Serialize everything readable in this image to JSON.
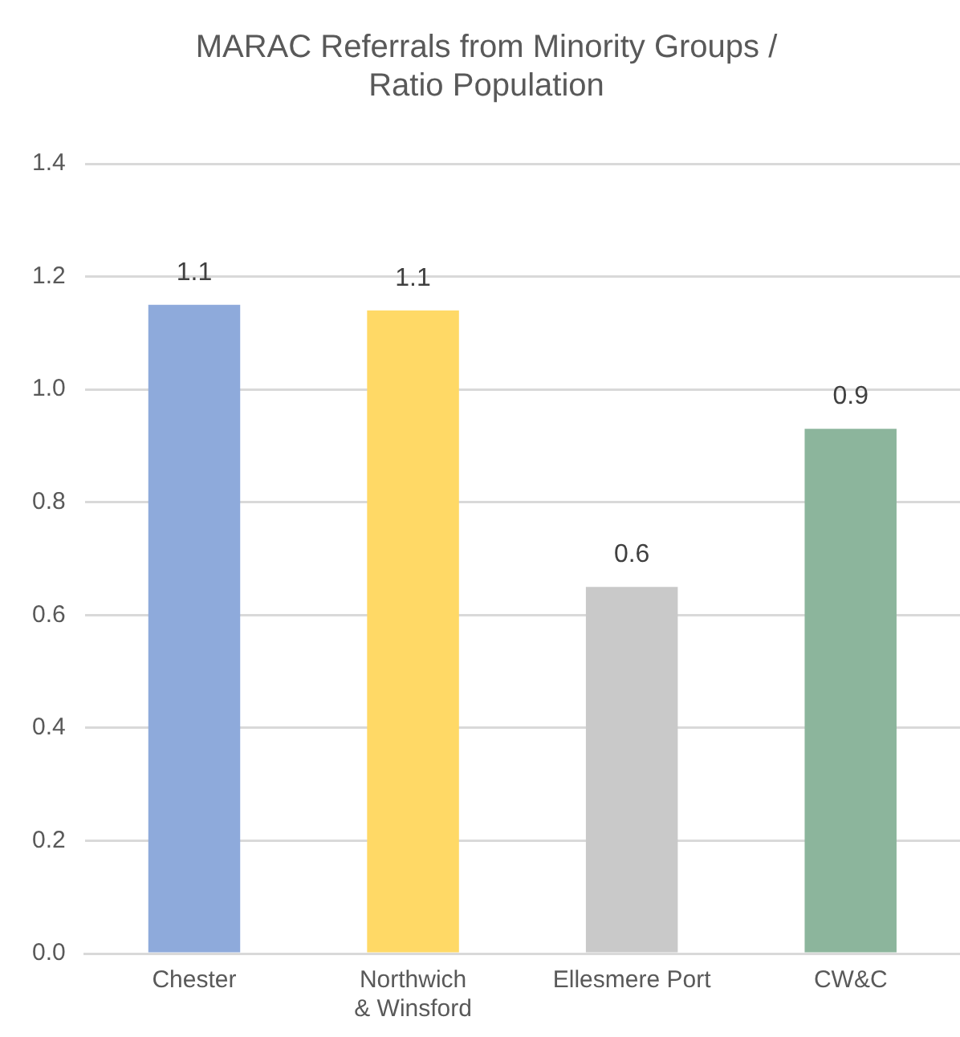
{
  "chart_data": {
    "type": "bar",
    "title": "MARAC Referrals from Minority Groups / Ratio Population",
    "categories": [
      "Chester",
      "Northwich & Winsford",
      "Ellesmere Port",
      "CW&C"
    ],
    "values": [
      1.15,
      1.14,
      0.65,
      0.93
    ],
    "colors": [
      "#8eaadb",
      "#ffd966",
      "#c9c9c9",
      "#8cb59c"
    ],
    "value_labels": [
      "1.1",
      "1.1",
      "0.6",
      "0.9"
    ],
    "ylim": [
      0,
      1.4
    ],
    "yticks": [
      {
        "value": 0,
        "label": "0.0"
      },
      {
        "value": 0.2,
        "label": "0.2"
      },
      {
        "value": 0.4,
        "label": "0.4"
      },
      {
        "value": 0.6,
        "label": "0.6"
      },
      {
        "value": 0.8,
        "label": "0.8"
      },
      {
        "value": 1,
        "label": "1.0"
      },
      {
        "value": 1.2,
        "label": "1.2"
      },
      {
        "value": 1.4,
        "label": "1.4"
      }
    ],
    "grid": "y",
    "legend": false
  }
}
